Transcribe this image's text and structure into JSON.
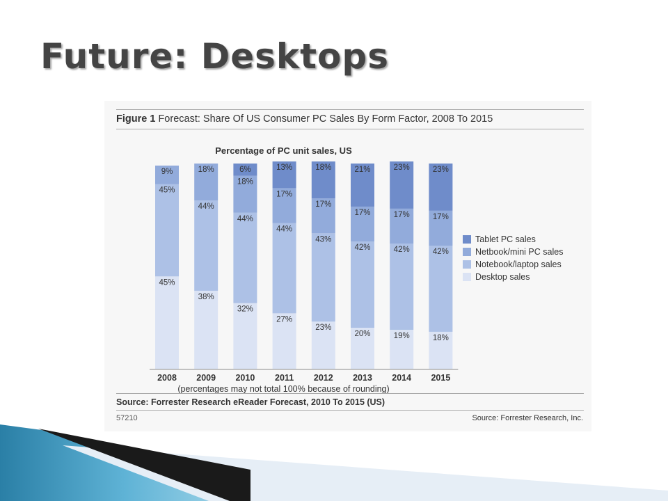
{
  "slide": {
    "title": "Future: Desktops"
  },
  "figure": {
    "label": "Figure 1",
    "title": "Forecast: Share Of US Consumer PC Sales By Form Factor, 2008 To 2015",
    "note": "(percentages may not total 100% because of rounding)",
    "source_main": "Source: Forrester Research eReader Forecast, 2010 To 2015 (US)",
    "id": "57210",
    "source_right": "Source: Forrester Research, Inc."
  },
  "chart_data": {
    "type": "bar",
    "stacked": true,
    "title": "Percentage of PC unit sales, US",
    "categories": [
      "2008",
      "2009",
      "2010",
      "2011",
      "2012",
      "2013",
      "2014",
      "2015"
    ],
    "series": [
      {
        "name": "Desktop sales",
        "values": [
          45,
          38,
          32,
          27,
          23,
          20,
          19,
          18
        ],
        "color": "#dbe3f4"
      },
      {
        "name": "Notebook/laptop sales",
        "values": [
          45,
          44,
          44,
          44,
          43,
          42,
          42,
          42
        ],
        "color": "#adc1e6"
      },
      {
        "name": "Netbook/mini PC sales",
        "values": [
          9,
          18,
          18,
          17,
          17,
          17,
          17,
          17
        ],
        "color": "#92abdb"
      },
      {
        "name": "Tablet PC sales",
        "values": [
          0,
          0,
          6,
          13,
          18,
          21,
          23,
          23
        ],
        "color": "#6f8cca"
      }
    ],
    "value_suffix": "%",
    "legend_position": "right",
    "grid": false,
    "ylim": [
      0,
      100
    ]
  }
}
